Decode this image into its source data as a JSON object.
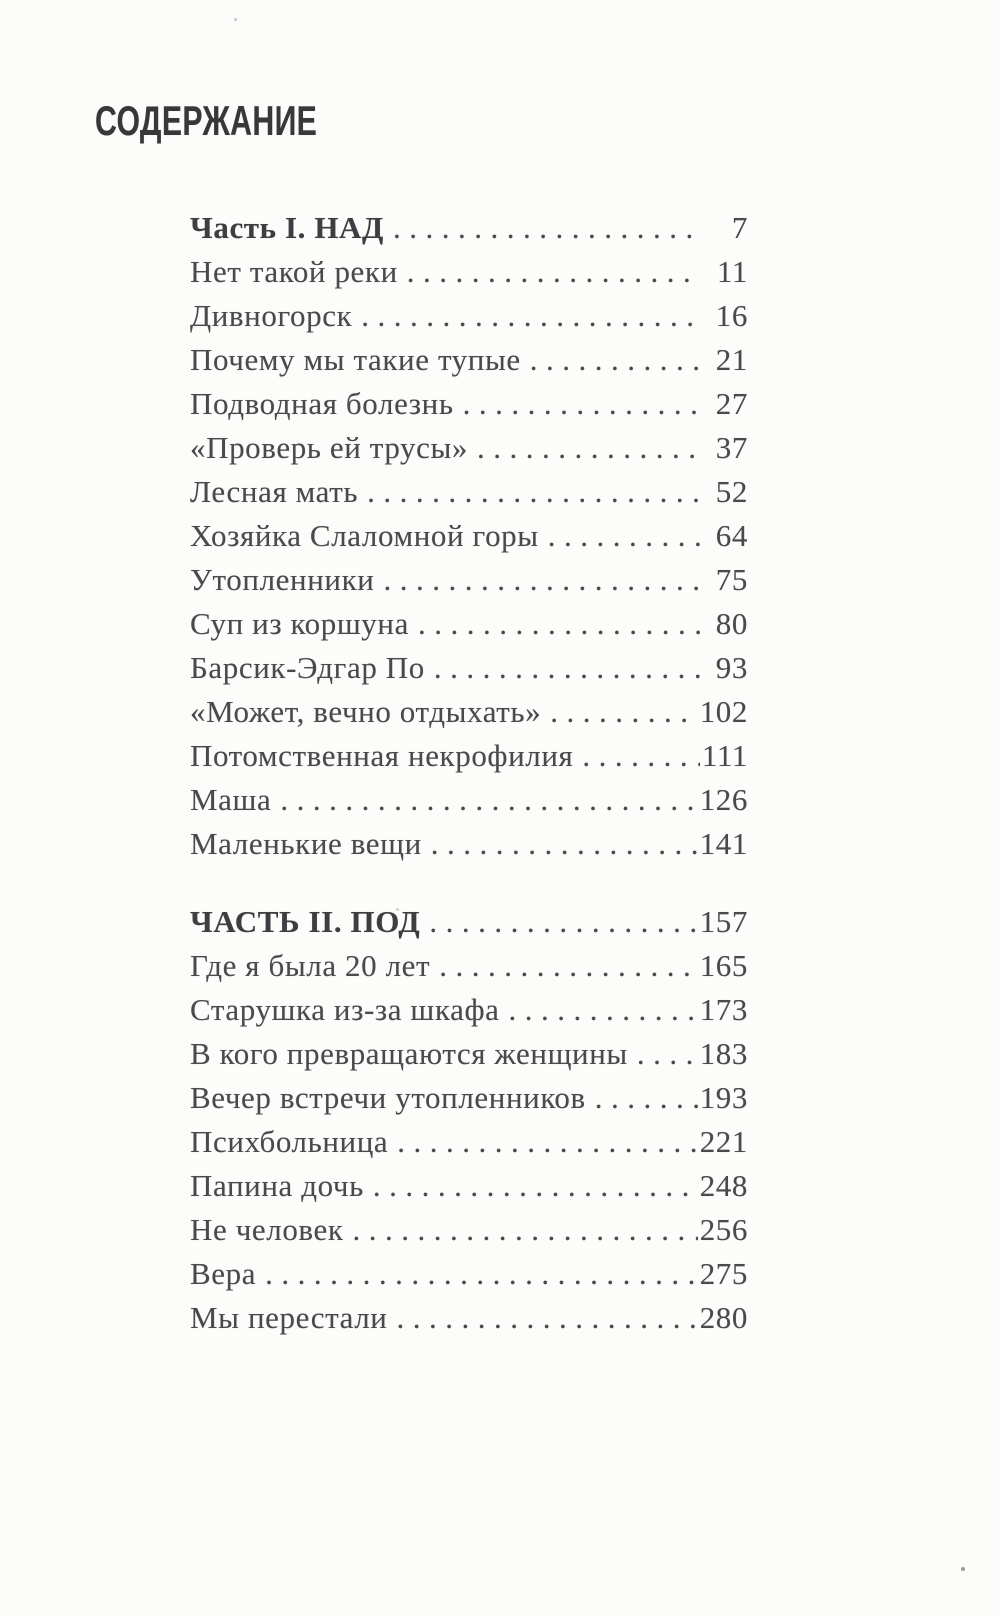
{
  "page": {
    "title": "СОДЕРЖАНИЕ"
  },
  "toc": {
    "sections": [
      {
        "heading": {
          "label": "Часть I. НАД",
          "page": "7"
        },
        "entries": [
          {
            "label": "Нет такой реки",
            "page": "11"
          },
          {
            "label": "Дивногорск",
            "page": "16"
          },
          {
            "label": "Почему мы такие тупые",
            "page": "21"
          },
          {
            "label": "Подводная болезнь",
            "page": "27"
          },
          {
            "label": "«Проверь ей трусы»",
            "page": "37"
          },
          {
            "label": "Лесная мать",
            "page": "52"
          },
          {
            "label": "Хозяйка Слаломной горы",
            "page": "64"
          },
          {
            "label": "Утопленники",
            "page": "75"
          },
          {
            "label": "Суп из коршуна",
            "page": "80"
          },
          {
            "label": "Барсик-Эдгар По",
            "page": "93"
          },
          {
            "label": "«Может, вечно отдыхать»",
            "page": "102"
          },
          {
            "label": "Потомственная некрофилия",
            "page": "111"
          },
          {
            "label": "Маша",
            "page": "126"
          },
          {
            "label": "Маленькие вещи",
            "page": "141"
          }
        ]
      },
      {
        "heading": {
          "label": "ЧАСТЬ II. ПОД",
          "page": "157"
        },
        "entries": [
          {
            "label": "Где я была 20 лет",
            "page": "165"
          },
          {
            "label": "Старушка из-за шкафа",
            "page": "173"
          },
          {
            "label": "В кого превращаются женщины",
            "page": "183"
          },
          {
            "label": "Вечер встречи утопленников",
            "page": "193"
          },
          {
            "label": "Психбольница",
            "page": "221"
          },
          {
            "label": "Папина дочь",
            "page": "248"
          },
          {
            "label": "Не человек",
            "page": "256"
          },
          {
            "label": "Вера",
            "page": "275"
          },
          {
            "label": "Мы перестали",
            "page": "280"
          }
        ]
      }
    ]
  },
  "style": {
    "text_color": "#4a4a4a",
    "heading_color": "#3d3d42",
    "title_color": "#383838",
    "paper_color": "#fcfcfb"
  }
}
